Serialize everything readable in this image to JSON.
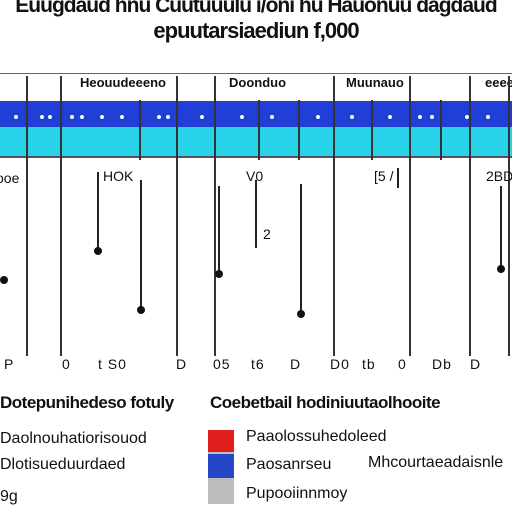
{
  "window": {
    "title_line1": "Euugdaud hnu Cuutuuulu i/oni hu Hauonuu dagdaud",
    "title_line2": "epuutarsiaediun f,000"
  },
  "columns": {
    "headers": [
      "Heouudeeeno",
      "Doonduo",
      "Muunauo",
      "eeeesre"
    ],
    "codes": [
      "ooe",
      "HOK",
      "V0",
      "[5 /",
      "2BD"
    ],
    "midlabel": "2"
  },
  "axis": {
    "ticks": [
      "P",
      "0",
      "t S0",
      "D",
      "05",
      "t6",
      "D",
      "D0",
      "tb",
      "0",
      "Db"
    ]
  },
  "legend": {
    "left_heading": "Dotepunihedeso fotuly",
    "right_heading": "Coebetbail hodiniuutaolhooite",
    "left_items": [
      "Daolnouhatiorisouod",
      "Dlotisueduurdaed",
      "9g"
    ],
    "right_items": [
      "Paaolossuhedoleed",
      "Paosanrseu",
      "Mhcourtaeadaisnle",
      "Pupooiinnmoy"
    ],
    "swatch_colors": [
      "#e01c1c",
      "#2646c8",
      "#bdbdbd"
    ]
  },
  "theme": {
    "band_blue": "#1f3fd6",
    "band_cyan": "#28d2e8"
  }
}
